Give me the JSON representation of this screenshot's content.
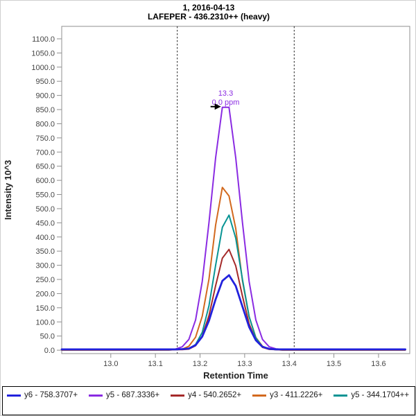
{
  "chart_data": {
    "type": "line",
    "title": "1, 2016-04-13",
    "subtitle": "LAFEPER - 436.2310++ (heavy)",
    "xlabel": "Retention Time",
    "ylabel": "Intensity 10^3",
    "xlim": [
      12.89,
      13.67
    ],
    "ylim": [
      0,
      1100
    ],
    "grid": false,
    "legend_position": "bottom",
    "x_ticks": [
      13.0,
      13.1,
      13.2,
      13.3,
      13.4,
      13.5,
      13.6
    ],
    "x_tick_labels": [
      "13.0",
      "13.1",
      "13.2",
      "13.3",
      "13.4",
      "13.5",
      "13.6"
    ],
    "y_ticks": [
      0,
      50,
      100,
      150,
      200,
      250,
      300,
      350,
      400,
      450,
      500,
      550,
      600,
      650,
      700,
      750,
      800,
      850,
      900,
      950,
      1000,
      1050,
      1100
    ],
    "y_tick_labels": [
      "0.0",
      "50.0",
      "100.0",
      "150.0",
      "200.0",
      "250.0",
      "300.0",
      "350.0",
      "400.0",
      "450.0",
      "500.0",
      "550.0",
      "600.0",
      "650.0",
      "700.0",
      "750.0",
      "800.0",
      "850.0",
      "900.0",
      "950.0",
      "1000.0",
      "1050.0",
      "1100.0"
    ],
    "integration_boundaries": [
      13.149,
      13.411
    ],
    "annotation": {
      "rt_label": "13.3",
      "ppm_label": "0.0 ppm",
      "x": 13.2575,
      "y": 858,
      "color": "#8a2be2"
    },
    "x": [
      12.89,
      12.97,
      13.02,
      13.07,
      13.1,
      13.13,
      13.145,
      13.16,
      13.175,
      13.19,
      13.205,
      13.22,
      13.235,
      13.25,
      13.265,
      13.28,
      13.295,
      13.31,
      13.325,
      13.34,
      13.355,
      13.37,
      13.385,
      13.4,
      13.42,
      13.45,
      13.5,
      13.55,
      13.6,
      13.66
    ],
    "series": [
      {
        "id": "y6",
        "name": "y6 - 758.3707+",
        "color": "#2222dd",
        "width": 2.8,
        "values": [
          3,
          3,
          3,
          3,
          3,
          3,
          3,
          4,
          6,
          18,
          48,
          104,
          180,
          245,
          265,
          227,
          154,
          82,
          35,
          12,
          5,
          3,
          3,
          3,
          3,
          3,
          3,
          3,
          3,
          3
        ]
      },
      {
        "id": "y5",
        "name": "y5 - 687.3336+",
        "color": "#8a2be2",
        "width": 2,
        "values": [
          2,
          2,
          2,
          2,
          2,
          2,
          4,
          12,
          38,
          107,
          243,
          451,
          680,
          858,
          858,
          680,
          451,
          243,
          107,
          38,
          12,
          5,
          3,
          2,
          2,
          2,
          2,
          2,
          2,
          2
        ]
      },
      {
        "id": "y4",
        "name": "y4 - 540.2652+",
        "color": "#a52a2a",
        "width": 2,
        "values": [
          1,
          1,
          1,
          1,
          1,
          1,
          2,
          2,
          4,
          16,
          50,
          122,
          228,
          325,
          356,
          298,
          191,
          93,
          35,
          10,
          3,
          2,
          1,
          1,
          1,
          1,
          1,
          1,
          1,
          1
        ]
      },
      {
        "id": "y3",
        "name": "y3 - 411.2226+",
        "color": "#d2691e",
        "width": 2,
        "values": [
          1,
          1,
          1,
          1,
          1,
          2,
          2,
          4,
          14,
          46,
          120,
          251,
          442,
          575,
          545,
          430,
          245,
          118,
          45,
          14,
          4,
          2,
          1,
          1,
          1,
          1,
          1,
          1,
          1,
          1
        ]
      },
      {
        "id": "y5b",
        "name": "y5 - 344.1704++",
        "color": "#089494",
        "width": 2,
        "values": [
          1,
          1,
          1,
          1,
          1,
          1,
          2,
          3,
          6,
          20,
          63,
          157,
          300,
          434,
          477,
          396,
          250,
          119,
          43,
          12,
          4,
          2,
          1,
          1,
          1,
          1,
          1,
          1,
          1,
          1
        ]
      }
    ]
  }
}
